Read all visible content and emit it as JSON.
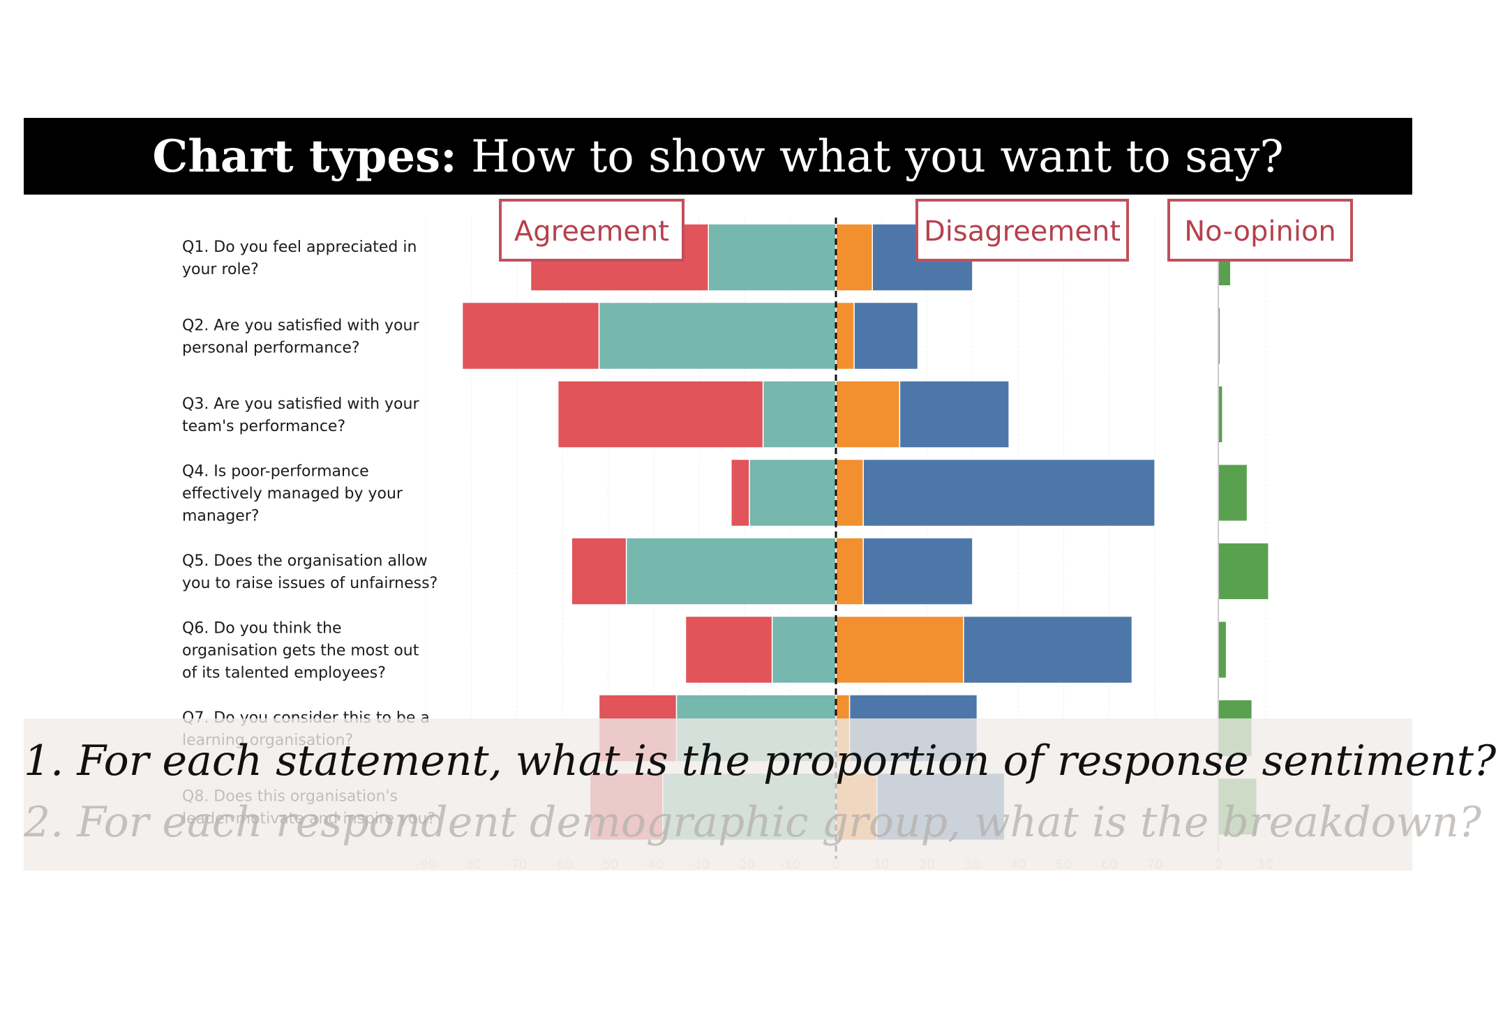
{
  "title": {
    "bold": "Chart types:",
    "rest": " How to show what you want to say?"
  },
  "legend": {
    "agreement": "Agreement",
    "disagreement": "Disagreement",
    "no_opinion": "No-opinion"
  },
  "overlay": {
    "question1": "1. For each statement, what is the proportion of response sentiment?",
    "question2": "2. For each respondent demographic group, what is the breakdown?"
  },
  "colors": {
    "strongly_agree": "#e0545a",
    "agree": "#76b7ae",
    "disagree": "#f28f2f",
    "strongly_disagree": "#4e77a9",
    "no_opinion": "#59a14f",
    "legend_border": "#c0505b"
  },
  "chart_data": {
    "type": "bar",
    "orientation": "horizontal",
    "stacked": "diverging",
    "categories": [
      [
        "Q1. Do you feel appreciated in",
        "your role?"
      ],
      [
        "Q2. Are you satisfied with your",
        "personal performance?"
      ],
      [
        "Q3. Are you satisfied with your",
        "team's performance?"
      ],
      [
        "Q4. Is poor-performance",
        "effectively managed by your",
        "manager?"
      ],
      [
        "Q5. Does the organisation allow",
        "you to raise issues of unfairness?"
      ],
      [
        "Q6. Do you think the",
        "organisation gets the most out",
        "of its talented employees?"
      ],
      [
        "Q7. Do you consider this to be a",
        "learning organisation?"
      ],
      [
        "Q8. Does this organisation's",
        "leader motivate and inspire you?"
      ]
    ],
    "series": [
      {
        "group": "agreement",
        "values": [
          -39,
          -30,
          -45,
          -4,
          -12,
          -19,
          -17,
          -16
        ]
      },
      {
        "group": "agreement",
        "values": [
          -28,
          -52,
          -16,
          -19,
          -46,
          -14,
          -35,
          -38
        ]
      },
      {
        "group": "disagreement",
        "values": [
          8,
          4,
          14,
          6,
          6,
          28,
          3,
          9
        ]
      },
      {
        "group": "disagreement",
        "values": [
          22,
          14,
          24,
          64,
          24,
          37,
          28,
          28
        ]
      },
      {
        "group": "no-opinion",
        "values": [
          2.5,
          0.3,
          0.8,
          6,
          10.5,
          1.6,
          7,
          8
        ]
      }
    ],
    "xlim": [
      -90,
      70
    ],
    "xticks": [
      -90,
      -80,
      -70,
      -60,
      -50,
      -40,
      -30,
      -20,
      -10,
      0,
      10,
      20,
      30,
      40,
      50,
      60,
      70
    ],
    "no_opinion_xticks": [
      0,
      10
    ],
    "grid": true
  }
}
